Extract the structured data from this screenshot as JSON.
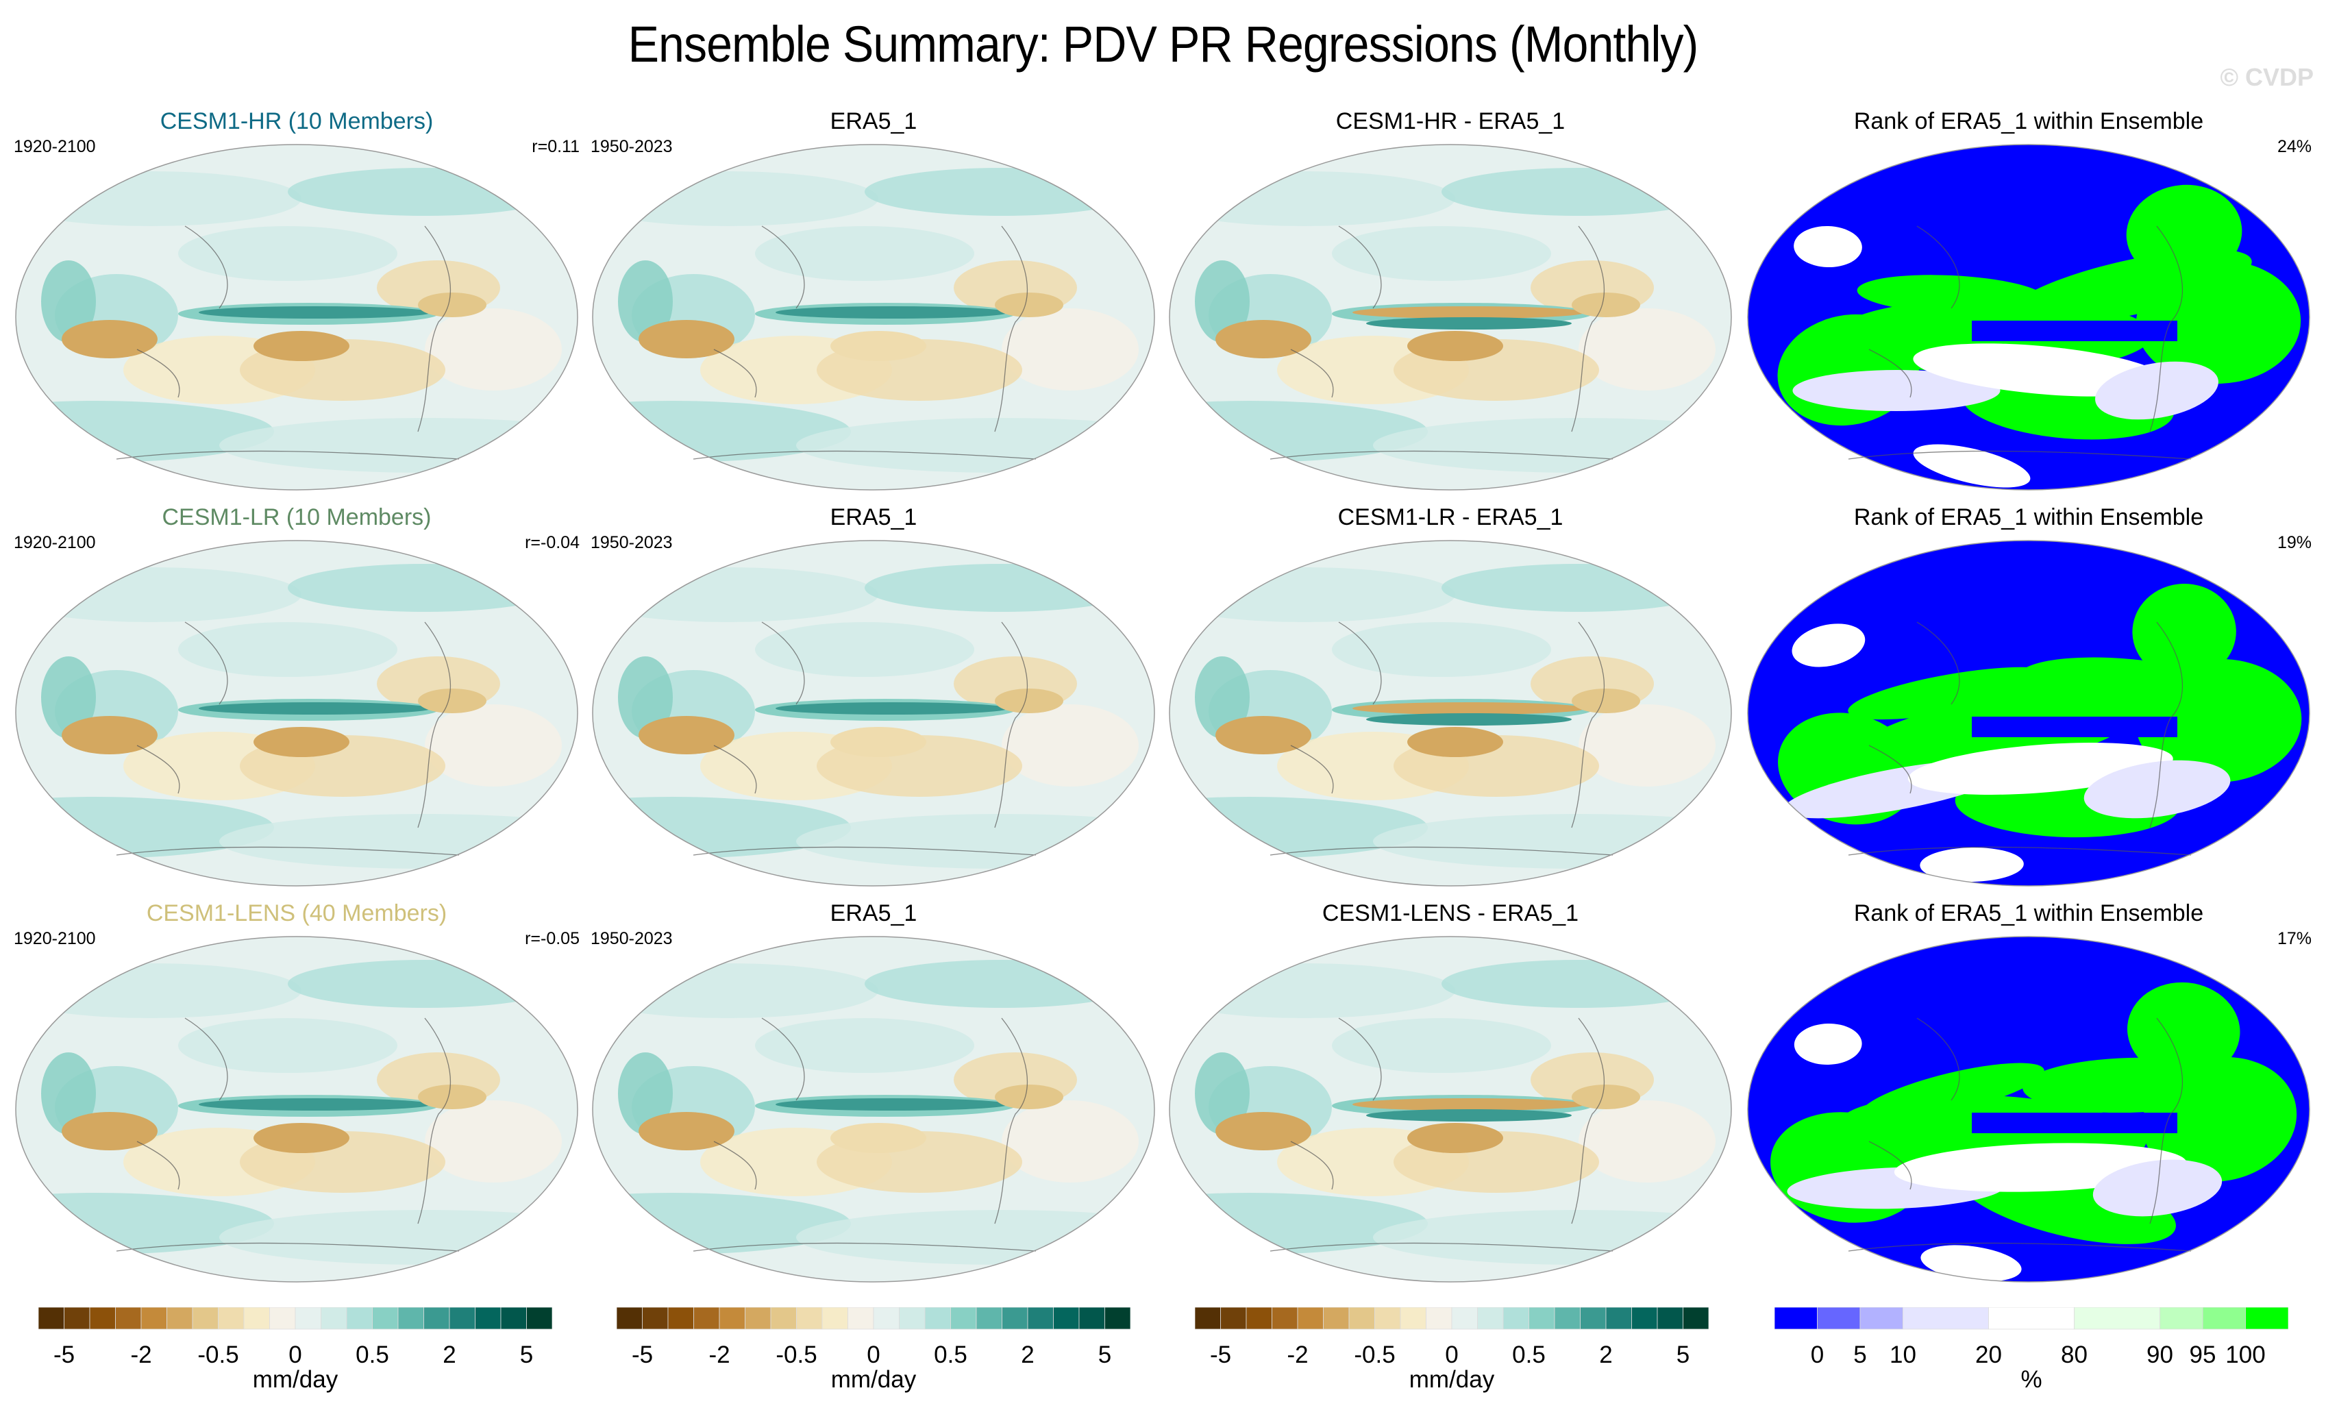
{
  "title": "Ensemble Summary: PDV PR Regressions (Monthly)",
  "watermark": "© CVDP",
  "rows": [
    {
      "model": {
        "title": "CESM1-HR (10 Members)",
        "title_color": "#0e6a85",
        "period": "1920-2100",
        "corr": "r=0.11"
      },
      "obs": {
        "title": "ERA5_1",
        "period": "1950-2023"
      },
      "diff": {
        "title": "CESM1-HR - ERA5_1"
      },
      "rank": {
        "title": "Rank of ERA5_1 within Ensemble",
        "pct": "24%"
      }
    },
    {
      "model": {
        "title": "CESM1-LR (10 Members)",
        "title_color": "#5e8a63",
        "period": "1920-2100",
        "corr": "r=-0.04"
      },
      "obs": {
        "title": "ERA5_1",
        "period": "1950-2023"
      },
      "diff": {
        "title": "CESM1-LR - ERA5_1"
      },
      "rank": {
        "title": "Rank of ERA5_1 within Ensemble",
        "pct": "19%"
      }
    },
    {
      "model": {
        "title": "CESM1-LENS (40 Members)",
        "title_color": "#cfc07a",
        "period": "1920-2100",
        "corr": "r=-0.05"
      },
      "obs": {
        "title": "ERA5_1",
        "period": "1950-2023"
      },
      "diff": {
        "title": "CESM1-LENS - ERA5_1"
      },
      "rank": {
        "title": "Rank of ERA5_1 within Ensemble",
        "pct": "17%"
      }
    }
  ],
  "chart_data": [
    {
      "type": "heatmap",
      "title": "PDV PR regression colorbar",
      "unit": "mm/day",
      "tick_labels": [
        "-5",
        "-2",
        "-0.5",
        "0",
        "0.5",
        "2",
        "5"
      ],
      "colors": [
        "#543005",
        "#70410a",
        "#8c510a",
        "#a6691f",
        "#c48a3a",
        "#d4a860",
        "#e3c78a",
        "#efdcae",
        "#f6ebc8",
        "#f5f1e8",
        "#e6f1ef",
        "#d1ebe7",
        "#b0e0da",
        "#88d0c4",
        "#5fb6ab",
        "#3b9a91",
        "#1f8079",
        "#04665d",
        "#02574c",
        "#01402f"
      ]
    },
    {
      "type": "heatmap",
      "title": "Rank colorbar",
      "unit": "%",
      "boundaries": [
        0,
        5,
        10,
        20,
        80,
        90,
        95,
        100
      ],
      "tick_labels": [
        "0",
        "5",
        "10",
        "20",
        "80",
        "90",
        "95",
        "100"
      ],
      "colors": [
        "#0000ff",
        "#6666ff",
        "#b2b2ff",
        "#e5e5ff",
        "#ffffff",
        "#e5ffe5",
        "#bfffbf",
        "#8fff8f",
        "#00ff00"
      ]
    }
  ]
}
